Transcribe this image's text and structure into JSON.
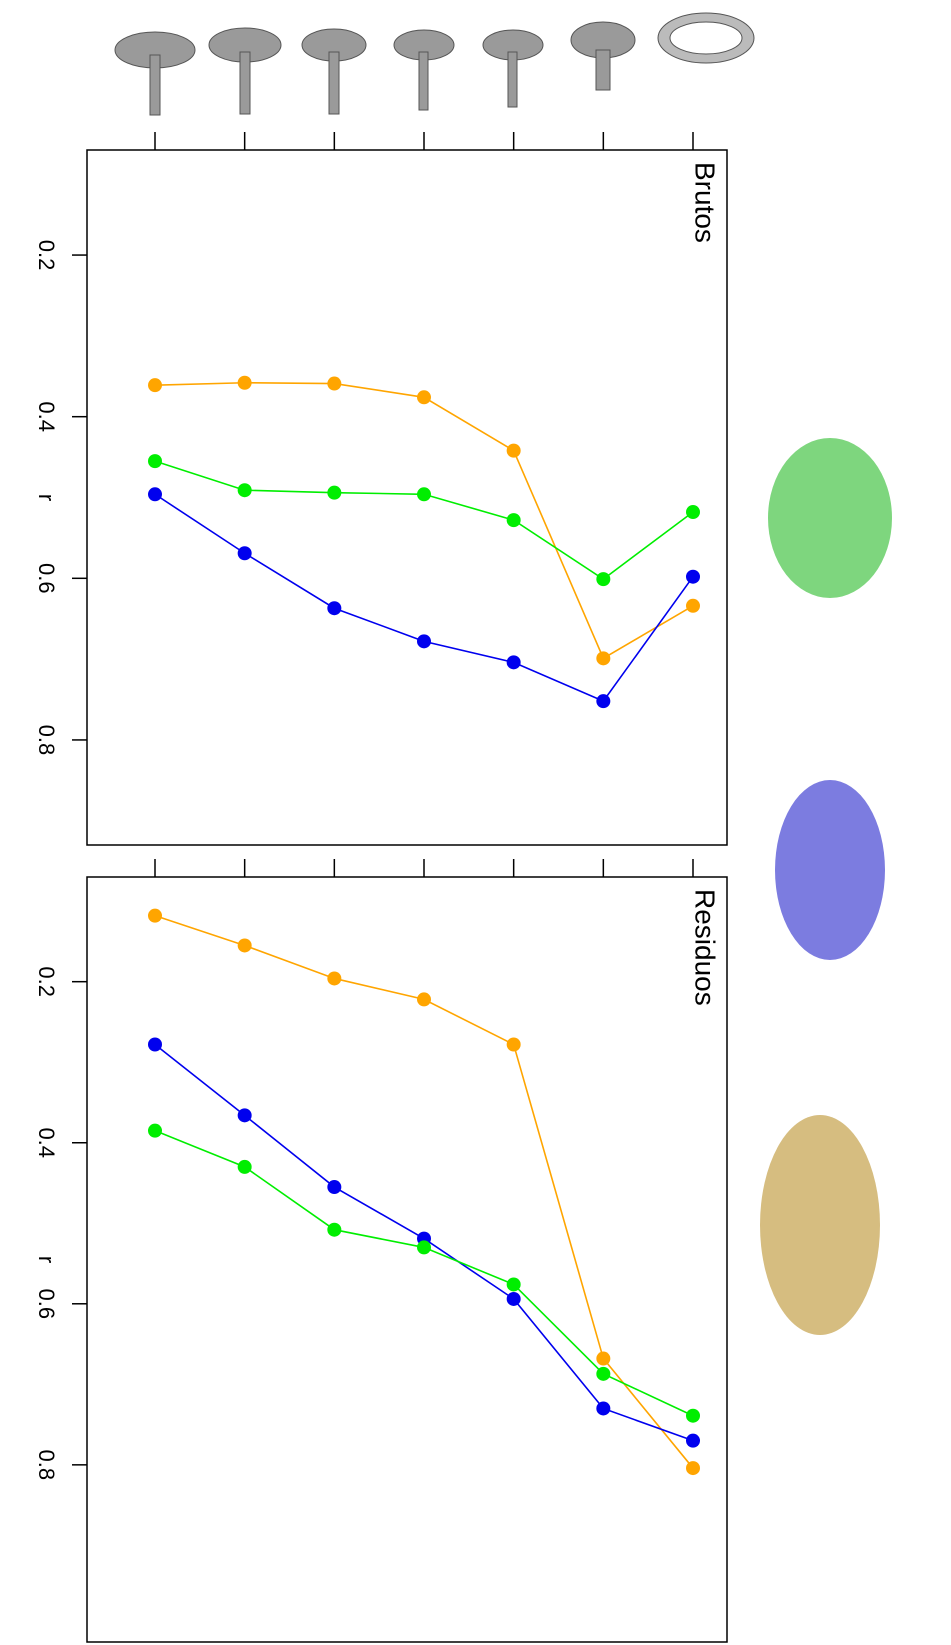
{
  "chart_data": [
    {
      "type": "line",
      "title": "Brutos",
      "y_label": "r",
      "categories": [
        null,
        null,
        null,
        null,
        null,
        null,
        null
      ],
      "series": [
        {
          "color": "#ffa500",
          "values": [
            0.361,
            0.358,
            0.359,
            0.376,
            0.442,
            0.699,
            0.634
          ]
        },
        {
          "color": "#00ee00",
          "values": [
            0.455,
            0.491,
            0.494,
            0.496,
            0.528,
            0.601,
            0.518
          ]
        },
        {
          "color": "#0000ee",
          "values": [
            0.496,
            0.569,
            0.637,
            0.678,
            0.704,
            0.752,
            0.598
          ]
        }
      ],
      "ylim": [
        0.07,
        0.93
      ],
      "yticks": [
        0.2,
        0.4,
        0.6,
        0.8
      ]
    },
    {
      "type": "line",
      "title": "Residuos",
      "y_label": "r",
      "categories": [
        null,
        null,
        null,
        null,
        null,
        null,
        null
      ],
      "series": [
        {
          "color": "#ffa500",
          "values": [
            0.118,
            0.155,
            0.196,
            0.222,
            0.278,
            0.668,
            0.804
          ]
        },
        {
          "color": "#0000ee",
          "values": [
            0.278,
            0.366,
            0.455,
            0.519,
            0.594,
            0.73,
            0.77
          ]
        },
        {
          "color": "#00ee00",
          "values": [
            0.385,
            0.43,
            0.508,
            0.53,
            0.576,
            0.687,
            0.739
          ]
        }
      ],
      "ylim": [
        0.07,
        1.02
      ],
      "yticks": [
        0.2,
        0.4,
        0.6,
        0.8
      ]
    }
  ]
}
